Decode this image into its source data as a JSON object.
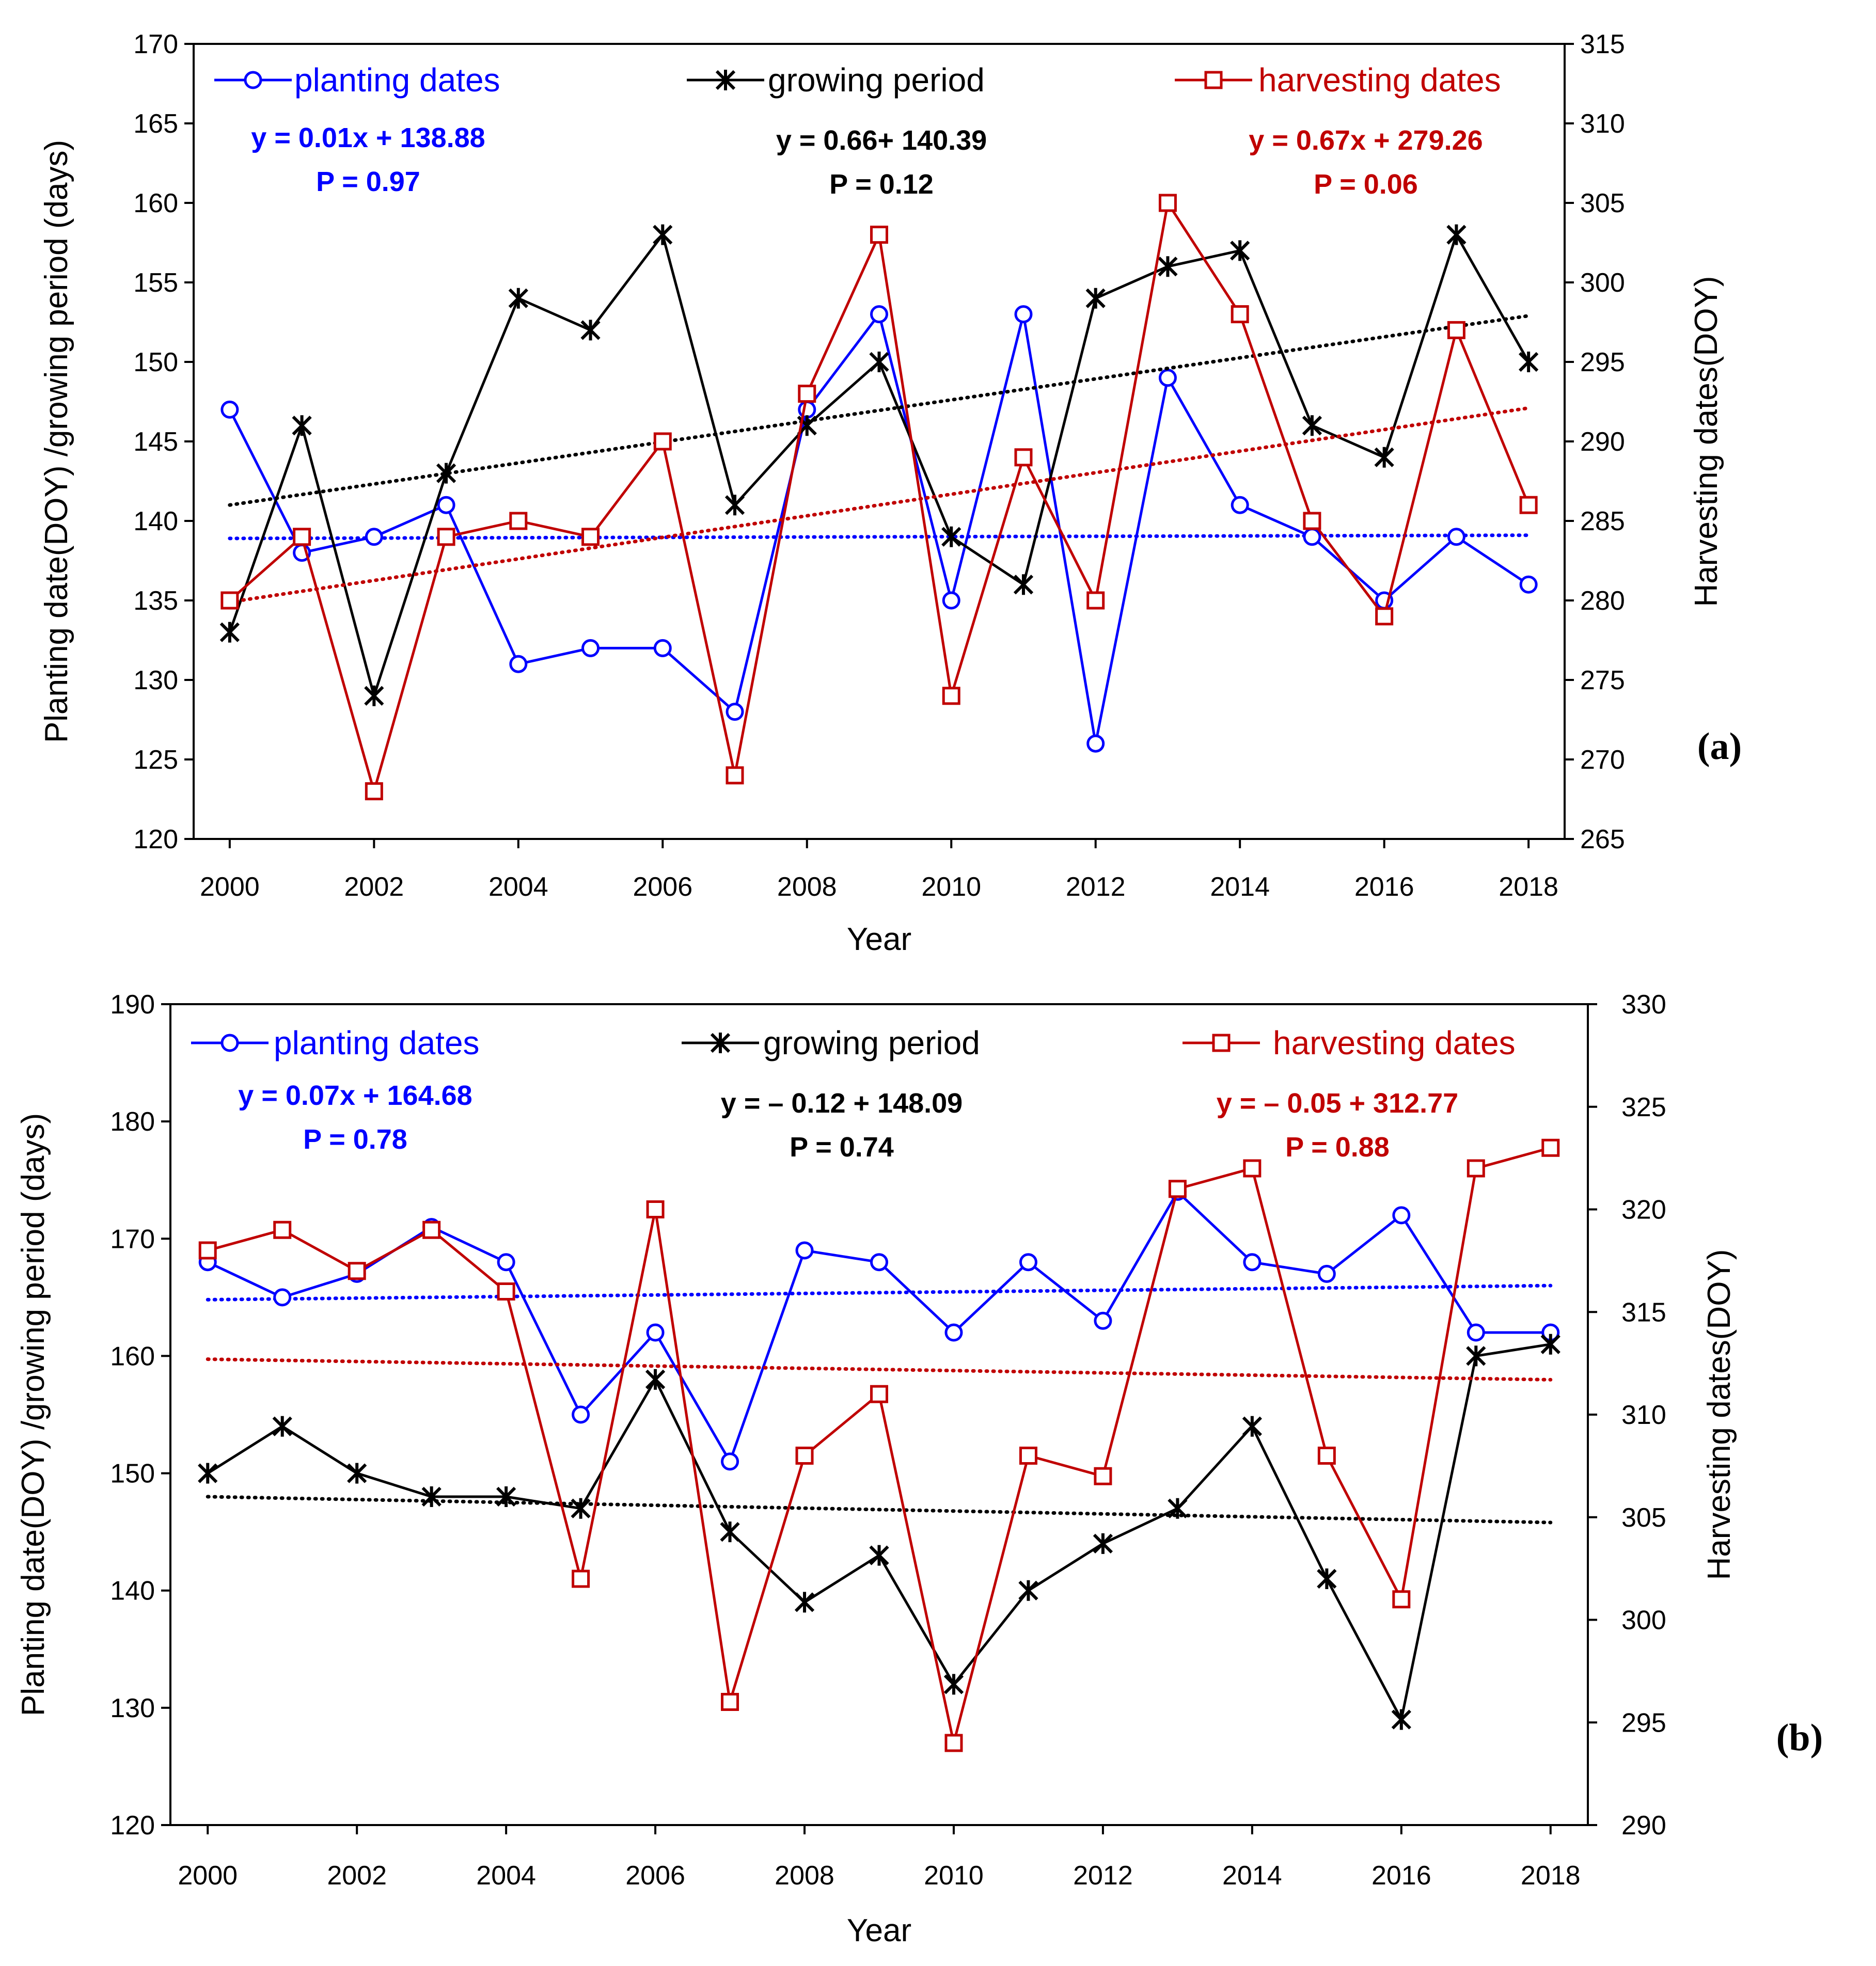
{
  "colors": {
    "planting": "#0000ff",
    "growing": "#000000",
    "harvesting": "#c00000"
  },
  "chart_data": [
    {
      "type": "line",
      "panel_label": "(a)",
      "xlabel": "Year",
      "ylabel": "Planting date(DOY) /growing period (days)",
      "y2label": "Harvesting dates(DOY)",
      "xlim": [
        1999.5,
        2018.5
      ],
      "ylim": [
        120,
        170
      ],
      "y2lim": [
        265,
        315
      ],
      "x_ticks": [
        "2000",
        "2002",
        "2004",
        "2006",
        "2008",
        "2010",
        "2012",
        "2014",
        "2016",
        "2018"
      ],
      "y_ticks": [
        "120",
        "125",
        "130",
        "135",
        "140",
        "145",
        "150",
        "155",
        "160",
        "165",
        "170"
      ],
      "y2_ticks": [
        "265",
        "270",
        "275",
        "280",
        "285",
        "290",
        "295",
        "300",
        "305",
        "310",
        "315"
      ],
      "grid": false,
      "legend_position": "top",
      "series": [
        {
          "name": "planting dates",
          "axis": "left",
          "marker": "circle",
          "x": [
            2000,
            2001,
            2002,
            2003,
            2004,
            2005,
            2006,
            2007,
            2008,
            2009,
            2010,
            2011,
            2012,
            2013,
            2014,
            2015,
            2016,
            2017,
            2018
          ],
          "values": [
            147,
            138,
            139,
            141,
            131,
            132,
            132,
            128,
            147,
            153,
            135,
            153,
            126,
            149,
            141,
            139,
            135,
            139,
            136
          ],
          "trend": {
            "start": 138.9,
            "end": 139.1
          },
          "equation": "y = 0.01x + 138.88",
          "p_value": "P = 0.97"
        },
        {
          "name": "growing period",
          "axis": "left",
          "marker": "cross",
          "x": [
            2000,
            2001,
            2002,
            2003,
            2004,
            2005,
            2006,
            2007,
            2008,
            2009,
            2010,
            2011,
            2012,
            2013,
            2014,
            2015,
            2016,
            2017,
            2018
          ],
          "values": [
            133,
            146,
            129,
            143,
            154,
            152,
            158,
            141,
            146,
            150,
            139,
            136,
            154,
            156,
            157,
            146,
            144,
            158,
            150
          ],
          "trend": {
            "start": 141.0,
            "end": 152.9
          },
          "equation": "y = 0.66+ 140.39",
          "p_value": "P = 0.12"
        },
        {
          "name": "harvesting dates",
          "axis": "right",
          "marker": "square",
          "x": [
            2000,
            2001,
            2002,
            2003,
            2004,
            2005,
            2006,
            2007,
            2008,
            2009,
            2010,
            2011,
            2012,
            2013,
            2014,
            2015,
            2016,
            2017,
            2018
          ],
          "values": [
            280,
            284,
            268,
            284,
            285,
            284,
            290,
            269,
            293,
            303,
            274,
            289,
            280,
            305,
            298,
            285,
            279,
            297,
            286
          ],
          "trend": {
            "start": 279.9,
            "end": 292.1
          },
          "equation": "y = 0.67x + 279.26",
          "p_value": "P  = 0.06"
        }
      ]
    },
    {
      "type": "line",
      "panel_label": "(b)",
      "xlabel": "Year",
      "ylabel": "Planting date(DOY) /growing period (days)",
      "y2label": "Harvesting dates(DOY)",
      "xlim": [
        1999.5,
        2018.5
      ],
      "ylim": [
        120,
        190
      ],
      "y2lim": [
        290,
        330
      ],
      "x_ticks": [
        "2000",
        "2002",
        "2004",
        "2006",
        "2008",
        "2010",
        "2012",
        "2014",
        "2016",
        "2018"
      ],
      "y_ticks": [
        "120",
        "130",
        "140",
        "150",
        "160",
        "170",
        "180",
        "190"
      ],
      "y2_ticks": [
        "290",
        "295",
        "300",
        "305",
        "310",
        "315",
        "320",
        "325",
        "330"
      ],
      "grid": false,
      "legend_position": "top",
      "series": [
        {
          "name": "planting dates",
          "axis": "left",
          "marker": "circle",
          "x": [
            2000,
            2001,
            2002,
            2003,
            2004,
            2005,
            2006,
            2007,
            2008,
            2009,
            2010,
            2011,
            2012,
            2013,
            2014,
            2015,
            2016,
            2017,
            2018
          ],
          "values": [
            168,
            165,
            167,
            171,
            168,
            155,
            162,
            151,
            169,
            168,
            162,
            168,
            163,
            174,
            168,
            167,
            172,
            162,
            162
          ],
          "trend": {
            "start": 164.8,
            "end": 166.0
          },
          "equation": "y = 0.07x + 164.68",
          "p_value": "P = 0.78"
        },
        {
          "name": "growing period",
          "axis": "left",
          "marker": "cross",
          "x": [
            2000,
            2001,
            2002,
            2003,
            2004,
            2005,
            2006,
            2007,
            2008,
            2009,
            2010,
            2011,
            2012,
            2013,
            2014,
            2015,
            2016,
            2017,
            2018
          ],
          "values": [
            150,
            154,
            150,
            148,
            148,
            147,
            158,
            145,
            139,
            143,
            132,
            140,
            144,
            147,
            154,
            141,
            129,
            160,
            161
          ],
          "trend": {
            "start": 148.0,
            "end": 145.8
          },
          "equation": "y = – 0.12 + 148.09",
          "p_value": "P = 0.74"
        },
        {
          "name": "harvesting dates",
          "axis": "right",
          "marker": "square",
          "x": [
            2000,
            2001,
            2002,
            2003,
            2004,
            2005,
            2006,
            2007,
            2008,
            2009,
            2010,
            2011,
            2012,
            2013,
            2014,
            2015,
            2016,
            2017,
            2018
          ],
          "values": [
            318,
            319,
            317,
            319,
            316,
            302,
            320,
            296,
            308,
            311,
            294,
            308,
            307,
            321,
            322,
            308,
            301,
            322,
            323
          ],
          "trend": {
            "start": 312.7,
            "end": 311.7
          },
          "equation": "y = – 0.05 + 312.77",
          "p_value": "P  = 0.88"
        }
      ]
    }
  ]
}
